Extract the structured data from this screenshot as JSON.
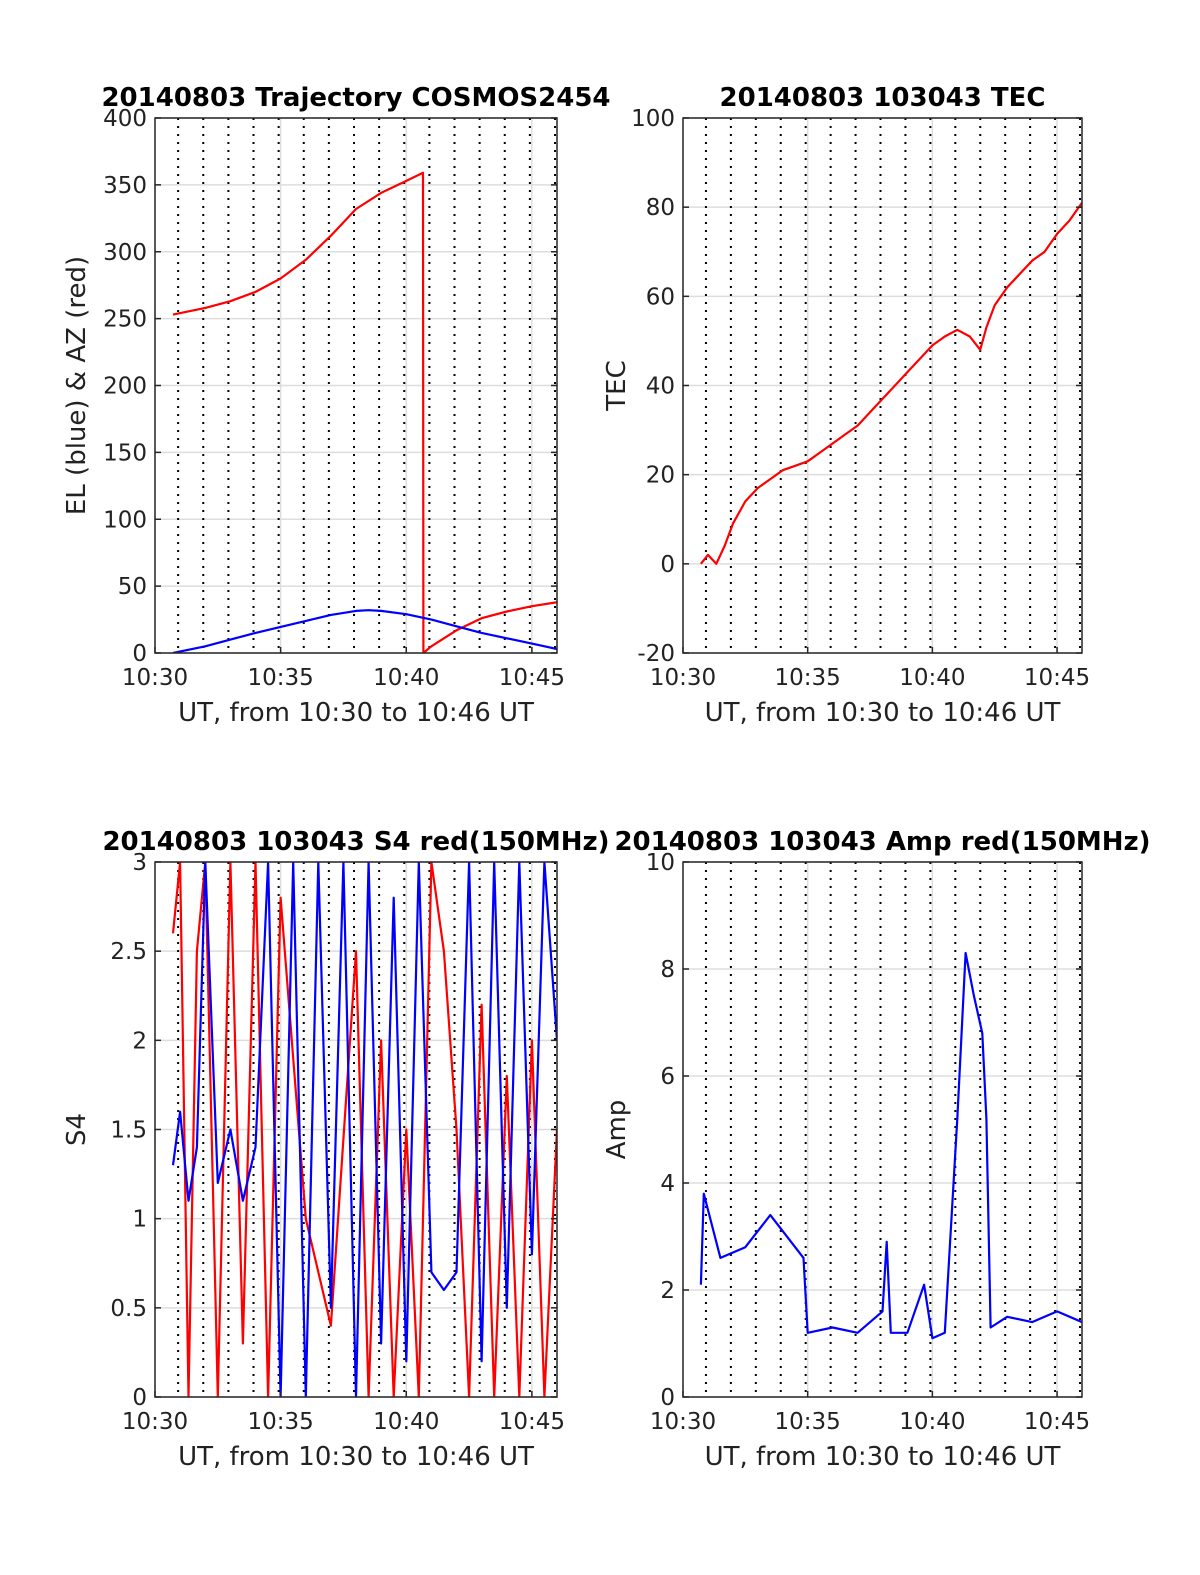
{
  "colors": {
    "red": "#ff0000",
    "blue": "#0000ff",
    "grid": "#dddddd",
    "vline": "#000000"
  },
  "chart_data": [
    {
      "type": "line",
      "title": "20140803 Trajectory COSMOS2454",
      "xlabel": "UT, from 10:30 to 10:46 UT",
      "ylabel": "EL (blue) & AZ (red)",
      "xlim": [
        "10:30",
        "10:46"
      ],
      "ylim": [
        0,
        400
      ],
      "xticks": [
        "10:30",
        "10:35",
        "10:40",
        "10:45"
      ],
      "yticks": [
        0,
        50,
        100,
        150,
        200,
        250,
        300,
        350,
        400
      ],
      "dotted_lines": [
        "10:31",
        "10:32",
        "10:33",
        "10:34",
        "10:35",
        "10:36",
        "10:37",
        "10:38",
        "10:39",
        "10:40",
        "10:41",
        "10:42",
        "10:43",
        "10:44",
        "10:45",
        "10:46"
      ],
      "grid": true,
      "series": [
        {
          "color": "red",
          "x": [
            "10:30:43",
            "10:32",
            "10:33",
            "10:34",
            "10:35",
            "10:36",
            "10:37",
            "10:38",
            "10:39",
            "10:40",
            "10:40:40",
            "10:40:41",
            "10:41",
            "10:42",
            "10:43",
            "10:44",
            "10:45",
            "10:46"
          ],
          "y": [
            253,
            258,
            263,
            270,
            280,
            294,
            312,
            332,
            344,
            353,
            359,
            0,
            5,
            17,
            26,
            31,
            35,
            38
          ]
        },
        {
          "color": "blue",
          "x": [
            "10:30:43",
            "10:32",
            "10:33",
            "10:34",
            "10:35",
            "10:36",
            "10:37",
            "10:38",
            "10:38:30",
            "10:39",
            "10:40",
            "10:41",
            "10:42",
            "10:43",
            "10:44",
            "10:45",
            "10:46"
          ],
          "y": [
            0,
            5,
            10,
            15,
            19.5,
            24,
            28.5,
            31.5,
            32,
            31.5,
            29,
            25,
            20,
            15,
            11,
            7,
            3
          ]
        }
      ]
    },
    {
      "type": "line",
      "title": "20140803 103043 TEC",
      "xlabel": "UT, from 10:30 to 10:46 UT",
      "ylabel": "TEC",
      "xlim": [
        "10:30",
        "10:46"
      ],
      "ylim": [
        -20,
        100
      ],
      "xticks": [
        "10:30",
        "10:35",
        "10:40",
        "10:45"
      ],
      "yticks": [
        -20,
        0,
        20,
        40,
        60,
        80,
        100
      ],
      "dotted_lines": [
        "10:31",
        "10:32",
        "10:33",
        "10:34",
        "10:35",
        "10:36",
        "10:37",
        "10:38",
        "10:39",
        "10:40",
        "10:41",
        "10:42",
        "10:43",
        "10:44",
        "10:45",
        "10:46"
      ],
      "grid": true,
      "series": [
        {
          "color": "red",
          "x": [
            "10:30:43",
            "10:31",
            "10:31:20",
            "10:31:40",
            "10:32",
            "10:32:30",
            "10:33",
            "10:33:30",
            "10:34",
            "10:34:30",
            "10:35",
            "10:35:30",
            "10:36",
            "10:36:30",
            "10:37",
            "10:37:30",
            "10:38",
            "10:38:30",
            "10:39",
            "10:39:30",
            "10:40",
            "10:40:30",
            "10:41",
            "10:41:30",
            "10:41:55",
            "10:42:10",
            "10:42:30",
            "10:43",
            "10:43:30",
            "10:44",
            "10:44:30",
            "10:45",
            "10:45:30",
            "10:46"
          ],
          "y": [
            0,
            2,
            0,
            4,
            9,
            14,
            17,
            19,
            21,
            22,
            23,
            25,
            27,
            29,
            31,
            34,
            37,
            40,
            43,
            46,
            49,
            51,
            52.5,
            51,
            48,
            53,
            58,
            62,
            65,
            68,
            70,
            74,
            77,
            81
          ]
        }
      ]
    },
    {
      "type": "line",
      "title": "20140803 103043 S4 red(150MHz)",
      "xlabel": "UT, from 10:30 to 10:46 UT",
      "ylabel": "S4",
      "xlim": [
        "10:30",
        "10:46"
      ],
      "ylim": [
        0,
        3
      ],
      "xticks": [
        "10:30",
        "10:35",
        "10:40",
        "10:45"
      ],
      "yticks": [
        0,
        0.5,
        1,
        1.5,
        2,
        2.5,
        3
      ],
      "dotted_lines": [
        "10:31",
        "10:32",
        "10:33",
        "10:34",
        "10:35",
        "10:36",
        "10:37",
        "10:38",
        "10:39",
        "10:40",
        "10:41",
        "10:42",
        "10:43",
        "10:44",
        "10:45",
        "10:46"
      ],
      "grid": true,
      "series": [
        {
          "color": "red",
          "x": [
            "10:30:43",
            "10:31:00",
            "10:31:20",
            "10:31:40",
            "10:32:00",
            "10:32:30",
            "10:33:00",
            "10:33:30",
            "10:34:00",
            "10:34:30",
            "10:35:00",
            "10:36:00",
            "10:37:00",
            "10:38:00",
            "10:38:30",
            "10:39:00",
            "10:39:30",
            "10:40:00",
            "10:40:30",
            "10:41:00",
            "10:41:30",
            "10:42:00",
            "10:42:30",
            "10:43:00",
            "10:43:30",
            "10:44:00",
            "10:44:30",
            "10:45:00",
            "10:45:30",
            "10:46:00"
          ],
          "y": [
            2.6,
            3,
            0,
            2.5,
            3,
            0,
            3,
            0.3,
            3,
            0,
            2.8,
            1.0,
            0.4,
            2.5,
            0,
            2.0,
            0,
            1.5,
            0,
            3,
            2.5,
            1.5,
            0,
            2.2,
            0,
            1.8,
            0,
            2.0,
            0,
            1.5
          ]
        },
        {
          "color": "blue",
          "x": [
            "10:30:43",
            "10:31:00",
            "10:31:20",
            "10:31:40",
            "10:32:00",
            "10:32:30",
            "10:33:00",
            "10:33:30",
            "10:34:00",
            "10:34:30",
            "10:35:00",
            "10:35:30",
            "10:36:00",
            "10:36:30",
            "10:37:00",
            "10:37:30",
            "10:38:00",
            "10:38:30",
            "10:39:00",
            "10:39:30",
            "10:40:00",
            "10:40:30",
            "10:41:00",
            "10:41:30",
            "10:42:00",
            "10:42:30",
            "10:43:00",
            "10:43:30",
            "10:44:00",
            "10:44:30",
            "10:45:00",
            "10:45:30",
            "10:46:00"
          ],
          "y": [
            1.3,
            1.6,
            1.1,
            1.4,
            3,
            1.2,
            1.5,
            1.1,
            1.4,
            3,
            0,
            3,
            0,
            3,
            0.5,
            3,
            0,
            3,
            0.3,
            2.8,
            0.2,
            3,
            0.7,
            0.6,
            0.7,
            3,
            0.2,
            3,
            0.5,
            3,
            0.8,
            3,
            2.0
          ]
        }
      ]
    },
    {
      "type": "line",
      "title": "20140803 103043 Amp red(150MHz)",
      "xlabel": "UT, from 10:30 to 10:46 UT",
      "ylabel": "Amp",
      "xlim": [
        "10:30",
        "10:46"
      ],
      "ylim": [
        0,
        10
      ],
      "xticks": [
        "10:30",
        "10:35",
        "10:40",
        "10:45"
      ],
      "yticks": [
        0,
        2,
        4,
        6,
        8,
        10
      ],
      "dotted_lines": [
        "10:31",
        "10:32",
        "10:33",
        "10:34",
        "10:35",
        "10:36",
        "10:37",
        "10:38",
        "10:39",
        "10:40",
        "10:41",
        "10:42",
        "10:43",
        "10:44",
        "10:45",
        "10:46"
      ],
      "grid": true,
      "series": [
        {
          "color": "blue",
          "x": [
            "10:30:43",
            "10:30:50",
            "10:31:30",
            "10:32:30",
            "10:33:30",
            "10:34:30",
            "10:34:50",
            "10:35:00",
            "10:36:00",
            "10:37:00",
            "10:38:00",
            "10:38:10",
            "10:38:20",
            "10:39:00",
            "10:39:40",
            "10:40:00",
            "10:40:30",
            "10:41:00",
            "10:41:20",
            "10:41:40",
            "10:42:00",
            "10:42:10",
            "10:42:20",
            "10:43:00",
            "10:44:00",
            "10:45:00",
            "10:46:00"
          ],
          "y": [
            2.1,
            3.8,
            2.6,
            2.8,
            3.4,
            2.8,
            2.6,
            1.2,
            1.3,
            1.2,
            1.6,
            2.9,
            1.2,
            1.2,
            2.1,
            1.1,
            1.2,
            5.2,
            8.3,
            7.5,
            6.8,
            5.2,
            1.3,
            1.5,
            1.4,
            1.6,
            1.4
          ]
        }
      ]
    }
  ]
}
